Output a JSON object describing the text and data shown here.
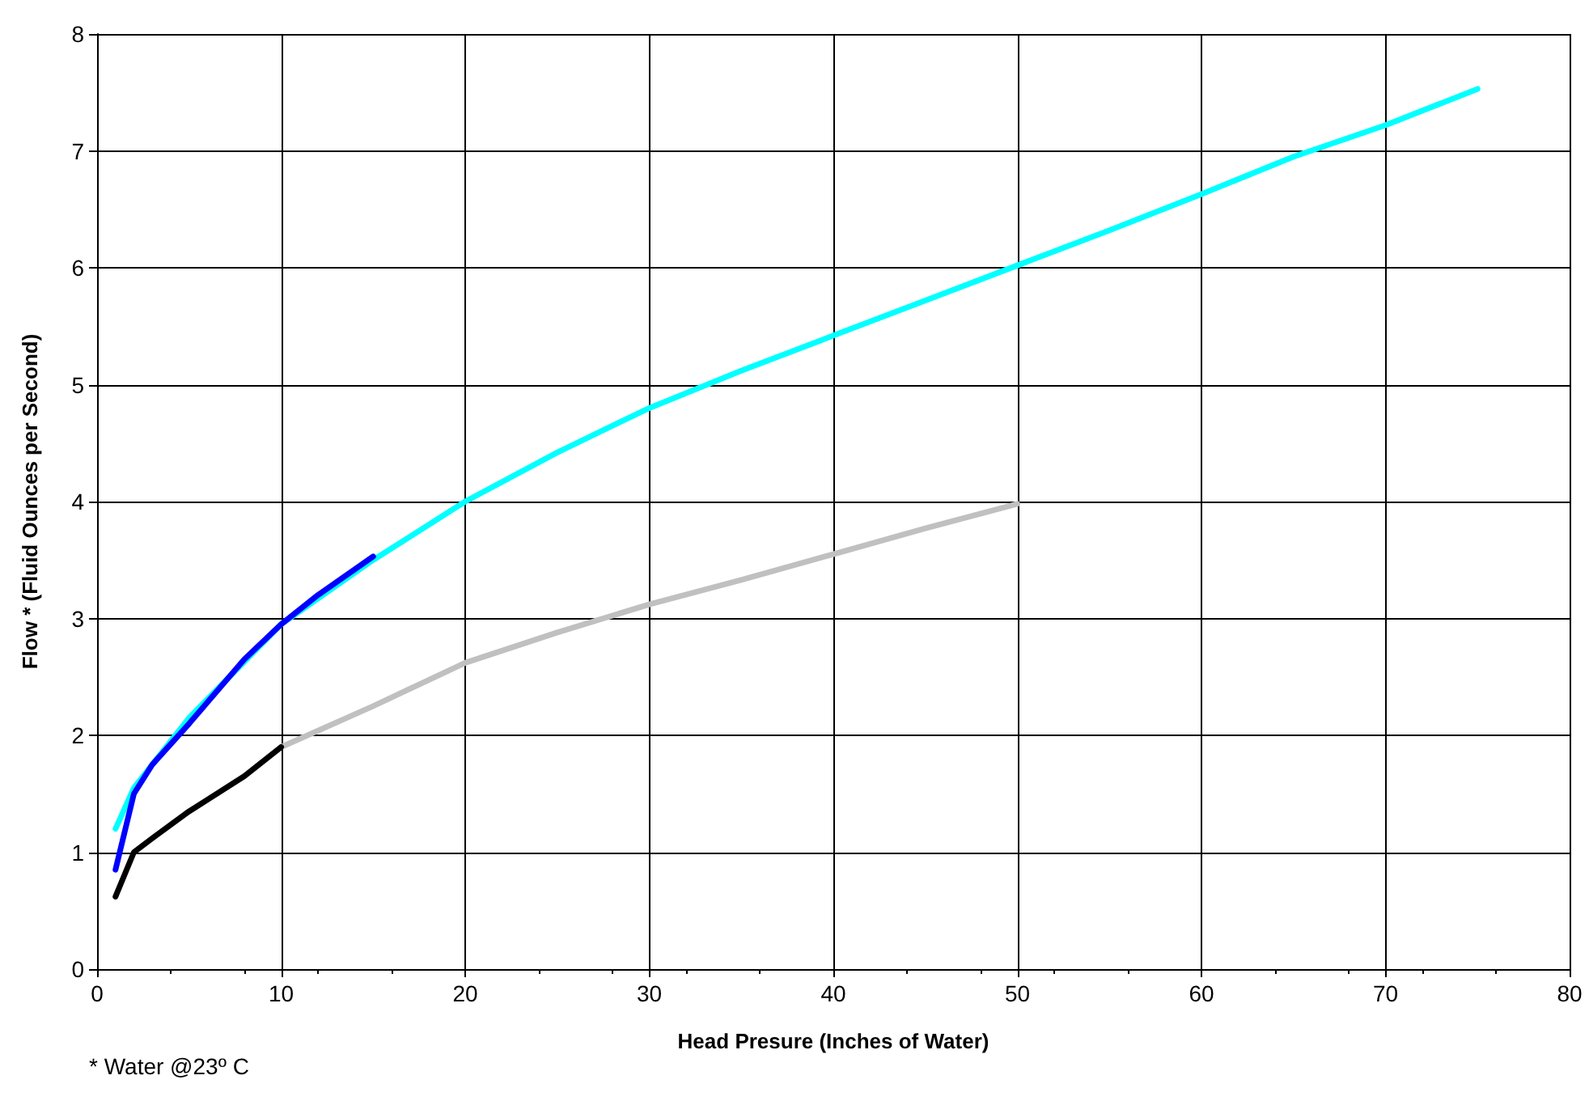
{
  "chart_data": {
    "type": "line",
    "xlabel": "Head Presure (Inches of Water)",
    "ylabel": "Flow * (Fluid Ounces per Second)",
    "annotations": [
      "* Water @23º C"
    ],
    "series": [
      {
        "color": "#00ffff",
        "x": [
          1,
          2,
          5,
          10,
          15,
          20,
          25,
          30,
          35,
          40,
          45,
          50,
          55,
          60,
          65,
          70,
          75
        ],
        "values": [
          1.2,
          1.55,
          2.15,
          2.95,
          3.5,
          4.0,
          4.42,
          4.8,
          5.12,
          5.42,
          5.72,
          6.02,
          6.32,
          6.63,
          6.95,
          7.22,
          7.53
        ]
      },
      {
        "color": "#c0c0c0",
        "x": [
          10,
          15,
          20,
          25,
          30,
          35,
          40,
          45,
          50
        ],
        "values": [
          1.9,
          2.25,
          2.62,
          2.88,
          3.12,
          3.33,
          3.55,
          3.77,
          3.98
        ]
      },
      {
        "color": "#0000ff",
        "x": [
          1,
          2,
          3,
          5,
          8,
          10,
          12,
          15
        ],
        "values": [
          0.85,
          1.5,
          1.75,
          2.1,
          2.65,
          2.95,
          3.2,
          3.53
        ]
      },
      {
        "color": "#000000",
        "x": [
          1,
          2,
          3,
          5,
          8,
          10
        ],
        "values": [
          0.62,
          1.0,
          1.12,
          1.35,
          1.65,
          1.9
        ]
      }
    ],
    "xlim": [
      0,
      80
    ],
    "xticks": [
      0,
      10,
      20,
      30,
      40,
      50,
      60,
      70,
      80
    ],
    "ylim": [
      0,
      8
    ],
    "yticks": [
      0,
      1,
      2,
      3,
      4,
      5,
      6,
      7,
      8
    ],
    "grid": true,
    "marker": "none",
    "line_style": "solid"
  }
}
